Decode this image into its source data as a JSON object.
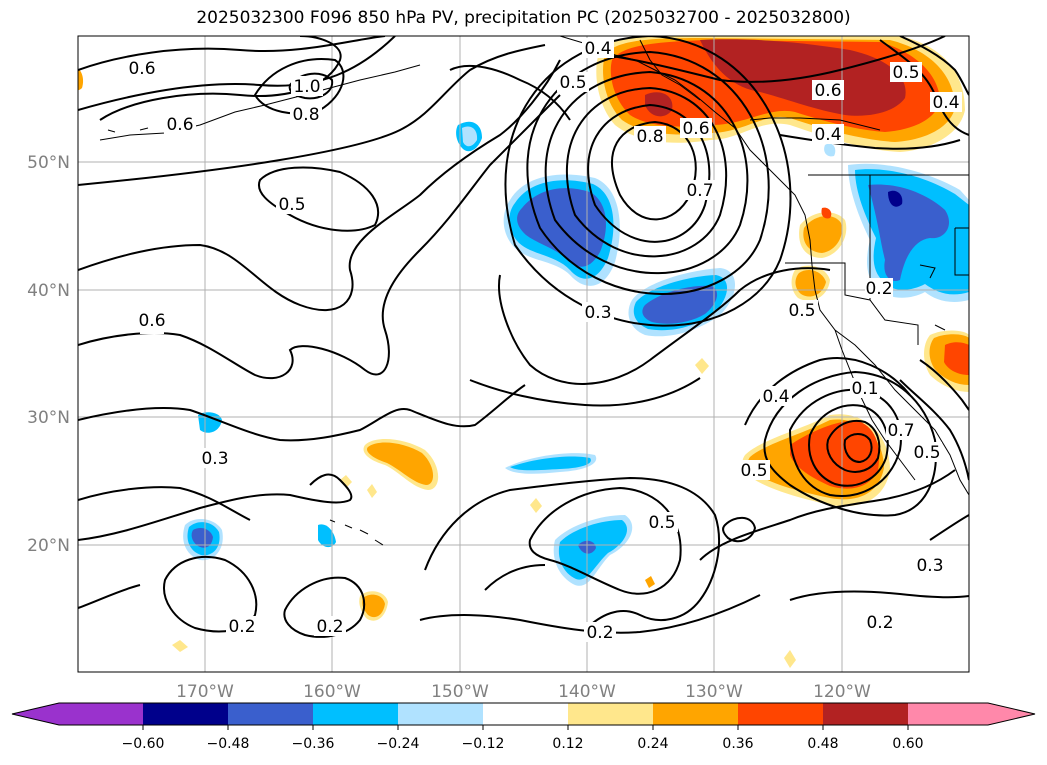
{
  "title": "2025032300 F096 850 hPa PV, precipitation PC (2025032700 - 2025032800)",
  "map": {
    "lat_labels": [
      "50°N",
      "40°N",
      "30°N",
      "20°N"
    ],
    "lon_labels": [
      "170°W",
      "160°W",
      "150°W",
      "140°W",
      "130°W",
      "120°W"
    ],
    "contour_labels": [
      "0.6",
      "1.0",
      "0.8",
      "0.6",
      "0.5",
      "0.4",
      "0.5",
      "0.8",
      "0.6",
      "0.7",
      "0.6",
      "0.4",
      "0.5",
      "0.4",
      "0.3",
      "0.6",
      "0.2",
      "0.5",
      "0.3",
      "0.4",
      "0.5",
      "0.1",
      "0.7",
      "0.5",
      "0.5",
      "0.3",
      "0.2",
      "0.2",
      "0.2",
      "0.2"
    ],
    "colors": {
      "coast": "#000000",
      "grid": "#b0b0b0",
      "contour": "#000000"
    }
  },
  "colorbar": {
    "tick_labels": [
      "−0.60",
      "−0.48",
      "−0.36",
      "−0.24",
      "−0.12",
      "0.12",
      "0.24",
      "0.36",
      "0.48",
      "0.60"
    ],
    "colors": [
      "#9a32cd",
      "#00008b",
      "#3a5fcd",
      "#00bfff",
      "#b0e2ff",
      "#ffffff",
      "#ffe78c",
      "#ffa500",
      "#ff4500",
      "#b22222",
      "#ff88aa"
    ]
  }
}
